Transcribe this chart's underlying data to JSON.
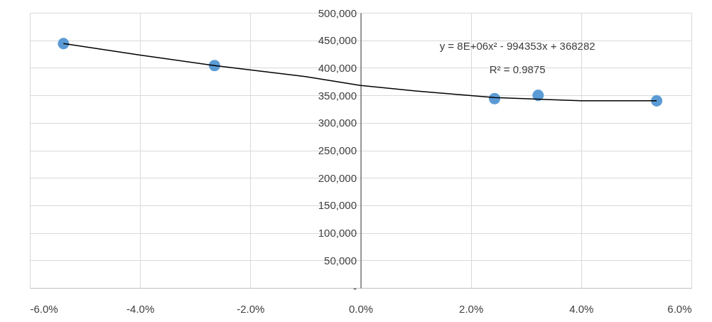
{
  "chart_data": {
    "type": "scatter",
    "series": [
      {
        "color": "#5b9bd5",
        "marker": "circle",
        "x": [
          -5.39,
          -2.65,
          2.43,
          3.22,
          5.37
        ],
        "values": [
          444000,
          404000,
          344000,
          350000,
          340000
        ]
      },
      {
        "type": "line",
        "color": "#000000",
        "marker": "none",
        "x": [
          -5.39,
          -4.0,
          -2.65,
          -1.0,
          0,
          1.0,
          2.43,
          3.22,
          4.0,
          5.37
        ],
        "values": [
          444000,
          423000,
          404000,
          384000,
          368000,
          358000,
          346000,
          343000,
          340000,
          340000
        ]
      }
    ],
    "xlim": [
      -6,
      6
    ],
    "xticks": [
      {
        "value": -6,
        "label": "-6.0%"
      },
      {
        "value": -4,
        "label": "-4.0%"
      },
      {
        "value": -2,
        "label": "-2.0%"
      },
      {
        "value": 0,
        "label": "0.0%"
      },
      {
        "value": 2,
        "label": "2.0%"
      },
      {
        "value": 4,
        "label": "4.0%"
      },
      {
        "value": 6,
        "label": "6.0%"
      }
    ],
    "ylim": [
      0,
      500000
    ],
    "yticks": [
      {
        "value": 0,
        "label": "-"
      },
      {
        "value": 50000,
        "label": "50,000"
      },
      {
        "value": 100000,
        "label": "100,000"
      },
      {
        "value": 150000,
        "label": "150,000"
      },
      {
        "value": 200000,
        "label": "200,000"
      },
      {
        "value": 250000,
        "label": "250,000"
      },
      {
        "value": 300000,
        "label": "300,000"
      },
      {
        "value": 350000,
        "label": "350,000"
      },
      {
        "value": 400000,
        "label": "400,000"
      },
      {
        "value": 450000,
        "label": "450,000"
      },
      {
        "value": 500000,
        "label": "500,000"
      }
    ],
    "grid": true,
    "annotations": [
      "y = 8E+06x² - 994353x + 368282",
      "R² = 0.9875"
    ]
  }
}
